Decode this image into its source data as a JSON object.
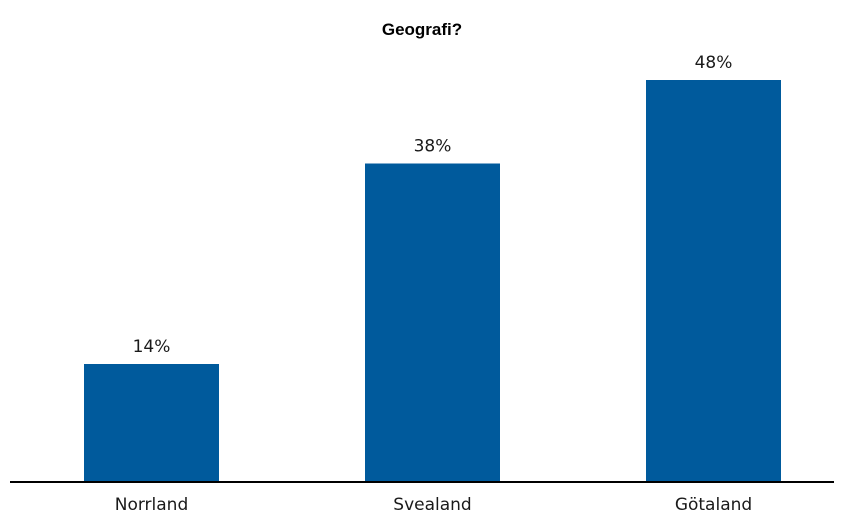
{
  "chart_data": {
    "type": "bar",
    "title": "Geografi?",
    "xlabel": "",
    "ylabel": "",
    "categories": [
      "Norrland",
      "Svealand",
      "Götaland"
    ],
    "values": [
      14,
      38,
      48
    ],
    "value_labels": [
      "14%",
      "38%",
      "48%"
    ],
    "unit": "%",
    "ylim": [
      0,
      54
    ],
    "grid": false,
    "legend": "none",
    "colors": {
      "bar": "#005a9c",
      "axis": "#000000",
      "text": "#1a1a1a"
    }
  }
}
